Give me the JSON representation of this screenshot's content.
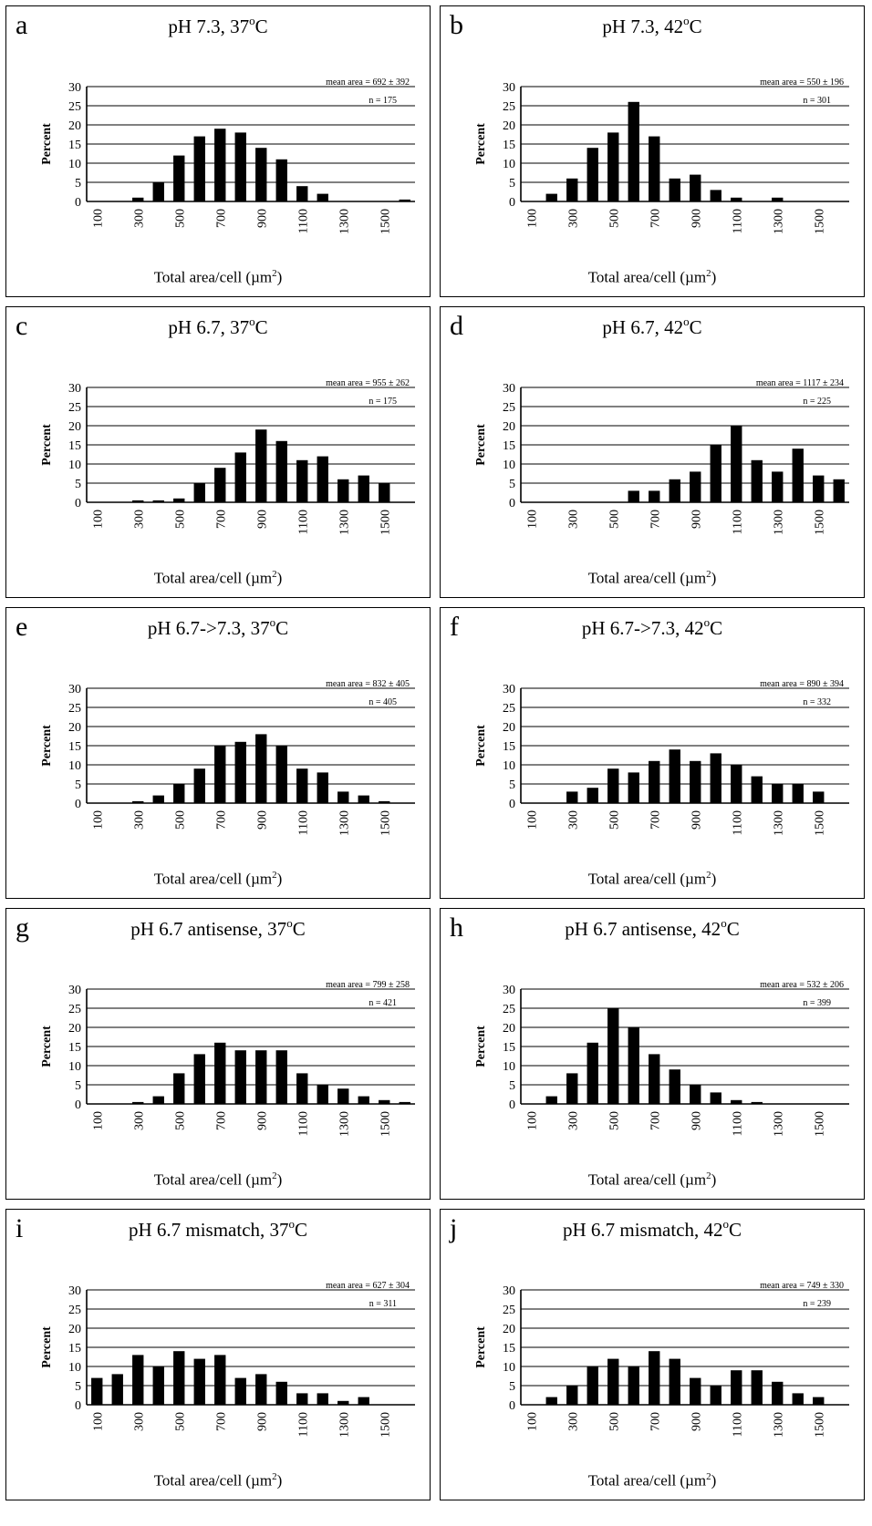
{
  "x_axis_label": "Total area/cell (µm",
  "x_axis_label_sup": "2",
  "y_axis_label": "Percent",
  "degree_unit": "C",
  "chart_data": [
    {
      "type": "bar",
      "letter": "a",
      "title": "pH 7.3, 37",
      "mean_area": "mean area = 692 ± 392",
      "n": "n = 175",
      "categories": [
        "100",
        "200",
        "300",
        "400",
        "500",
        "600",
        "700",
        "800",
        "900",
        "1000",
        "1100",
        "1200",
        "1300",
        "1400",
        "1500",
        "1600"
      ],
      "values": [
        0,
        0,
        1,
        5,
        12,
        17,
        19,
        18,
        14,
        11,
        4,
        2,
        0,
        0,
        0,
        0.5
      ],
      "tick_labels": [
        "100",
        "300",
        "500",
        "700",
        "900",
        "1100",
        "1300",
        "1500"
      ],
      "y_ticks": [
        "0",
        "5",
        "10",
        "15",
        "20",
        "25",
        "30"
      ],
      "ylim": [
        0,
        30
      ]
    },
    {
      "type": "bar",
      "letter": "b",
      "title": "pH 7.3, 42",
      "mean_area": "mean area = 550 ± 196",
      "n": "n = 301",
      "categories": [
        "100",
        "200",
        "300",
        "400",
        "500",
        "600",
        "700",
        "800",
        "900",
        "1000",
        "1100",
        "1200",
        "1300",
        "1400",
        "1500",
        "1600"
      ],
      "values": [
        0,
        2,
        6,
        14,
        18,
        26,
        17,
        6,
        7,
        3,
        1,
        0,
        1,
        0,
        0,
        0
      ],
      "tick_labels": [
        "100",
        "300",
        "500",
        "700",
        "900",
        "1100",
        "1300",
        "1500"
      ],
      "y_ticks": [
        "0",
        "5",
        "10",
        "15",
        "20",
        "25",
        "30"
      ],
      "ylim": [
        0,
        30
      ]
    },
    {
      "type": "bar",
      "letter": "c",
      "title": "pH 6.7, 37",
      "mean_area": "mean area = 955 ± 262",
      "n": "n = 175",
      "categories": [
        "100",
        "200",
        "300",
        "400",
        "500",
        "600",
        "700",
        "800",
        "900",
        "1000",
        "1100",
        "1200",
        "1300",
        "1400",
        "1500",
        "1600"
      ],
      "values": [
        0,
        0,
        0.5,
        0.5,
        1,
        5,
        9,
        13,
        19,
        16,
        11,
        12,
        6,
        7,
        5,
        0
      ],
      "tick_labels": [
        "100",
        "300",
        "500",
        "700",
        "900",
        "1100",
        "1300",
        "1500"
      ],
      "y_ticks": [
        "0",
        "5",
        "10",
        "15",
        "20",
        "25",
        "30"
      ],
      "ylim": [
        0,
        30
      ]
    },
    {
      "type": "bar",
      "letter": "d",
      "title": "pH 6.7, 42",
      "mean_area": "mean area = 1117 ± 234",
      "n": "n = 225",
      "categories": [
        "100",
        "200",
        "300",
        "400",
        "500",
        "600",
        "700",
        "800",
        "900",
        "1000",
        "1100",
        "1200",
        "1300",
        "1400",
        "1500",
        "1600"
      ],
      "values": [
        0,
        0,
        0,
        0,
        0,
        3,
        3,
        6,
        8,
        15,
        20,
        11,
        8,
        14,
        7,
        6
      ],
      "tick_labels": [
        "100",
        "300",
        "500",
        "700",
        "900",
        "1100",
        "1300",
        "1500"
      ],
      "y_ticks": [
        "0",
        "5",
        "10",
        "15",
        "20",
        "25",
        "30"
      ],
      "ylim": [
        0,
        30
      ]
    },
    {
      "type": "bar",
      "letter": "e",
      "title": "pH 6.7->7.3, 37",
      "mean_area": "mean area = 832 ± 405",
      "n": "n = 405",
      "categories": [
        "100",
        "200",
        "300",
        "400",
        "500",
        "600",
        "700",
        "800",
        "900",
        "1000",
        "1100",
        "1200",
        "1300",
        "1400",
        "1500",
        "1600"
      ],
      "values": [
        0,
        0,
        0.5,
        2,
        5,
        9,
        15,
        16,
        18,
        15,
        9,
        8,
        3,
        2,
        0.5,
        0
      ],
      "tick_labels": [
        "100",
        "300",
        "500",
        "700",
        "900",
        "1100",
        "1300",
        "1500"
      ],
      "y_ticks": [
        "0",
        "5",
        "10",
        "15",
        "20",
        "25",
        "30"
      ],
      "ylim": [
        0,
        30
      ]
    },
    {
      "type": "bar",
      "letter": "f",
      "title": "pH 6.7->7.3, 42",
      "mean_area": "mean area = 890 ± 394",
      "n": "n = 332",
      "categories": [
        "100",
        "200",
        "300",
        "400",
        "500",
        "600",
        "700",
        "800",
        "900",
        "1000",
        "1100",
        "1200",
        "1300",
        "1400",
        "1500",
        "1600"
      ],
      "values": [
        0,
        0,
        3,
        4,
        9,
        8,
        11,
        14,
        11,
        13,
        10,
        7,
        5,
        5,
        3,
        0
      ],
      "tick_labels": [
        "100",
        "300",
        "500",
        "700",
        "900",
        "1100",
        "1300",
        "1500"
      ],
      "y_ticks": [
        "0",
        "5",
        "10",
        "15",
        "20",
        "25",
        "30"
      ],
      "ylim": [
        0,
        30
      ]
    },
    {
      "type": "bar",
      "letter": "g",
      "title": "pH 6.7 antisense, 37",
      "mean_area": "mean area = 799 ± 258",
      "n": "n = 421",
      "categories": [
        "100",
        "200",
        "300",
        "400",
        "500",
        "600",
        "700",
        "800",
        "900",
        "1000",
        "1100",
        "1200",
        "1300",
        "1400",
        "1500",
        "1600"
      ],
      "values": [
        0,
        0,
        0.5,
        2,
        8,
        13,
        16,
        14,
        14,
        14,
        8,
        5,
        4,
        2,
        1,
        0.5
      ],
      "tick_labels": [
        "100",
        "300",
        "500",
        "700",
        "900",
        "1100",
        "1300",
        "1500"
      ],
      "y_ticks": [
        "0",
        "5",
        "10",
        "15",
        "20",
        "25",
        "30"
      ],
      "ylim": [
        0,
        30
      ]
    },
    {
      "type": "bar",
      "letter": "h",
      "title": "pH 6.7 antisense, 42",
      "mean_area": "mean area = 532 ± 206",
      "n": "n = 399",
      "categories": [
        "100",
        "200",
        "300",
        "400",
        "500",
        "600",
        "700",
        "800",
        "900",
        "1000",
        "1100",
        "1200",
        "1300",
        "1400",
        "1500",
        "1600"
      ],
      "values": [
        0,
        2,
        8,
        16,
        25,
        20,
        13,
        9,
        5,
        3,
        1,
        0.5,
        0,
        0,
        0,
        0
      ],
      "tick_labels": [
        "100",
        "300",
        "500",
        "700",
        "900",
        "1100",
        "1300",
        "1500"
      ],
      "y_ticks": [
        "0",
        "5",
        "10",
        "15",
        "20",
        "25",
        "30"
      ],
      "ylim": [
        0,
        30
      ]
    },
    {
      "type": "bar",
      "letter": "i",
      "title": "pH 6.7 mismatch, 37",
      "mean_area": "mean area = 627 ± 304",
      "n": "n = 311",
      "categories": [
        "100",
        "200",
        "300",
        "400",
        "500",
        "600",
        "700",
        "800",
        "900",
        "1000",
        "1100",
        "1200",
        "1300",
        "1400",
        "1500",
        "1600"
      ],
      "values": [
        7,
        8,
        13,
        10,
        14,
        12,
        13,
        7,
        8,
        6,
        3,
        3,
        1,
        2,
        0,
        0
      ],
      "tick_labels": [
        "100",
        "300",
        "500",
        "700",
        "900",
        "1100",
        "1300",
        "1500"
      ],
      "y_ticks": [
        "0",
        "5",
        "10",
        "15",
        "20",
        "25",
        "30"
      ],
      "ylim": [
        0,
        30
      ]
    },
    {
      "type": "bar",
      "letter": "j",
      "title": "pH 6.7 mismatch, 42",
      "mean_area": "mean area = 749 ± 330",
      "n": "n = 239",
      "categories": [
        "100",
        "200",
        "300",
        "400",
        "500",
        "600",
        "700",
        "800",
        "900",
        "1000",
        "1100",
        "1200",
        "1300",
        "1400",
        "1500",
        "1600"
      ],
      "values": [
        0,
        2,
        5,
        10,
        12,
        10,
        14,
        12,
        7,
        5,
        9,
        9,
        6,
        3,
        2,
        0
      ],
      "tick_labels": [
        "100",
        "300",
        "500",
        "700",
        "900",
        "1100",
        "1300",
        "1500"
      ],
      "y_ticks": [
        "0",
        "5",
        "10",
        "15",
        "20",
        "25",
        "30"
      ],
      "ylim": [
        0,
        30
      ]
    }
  ]
}
